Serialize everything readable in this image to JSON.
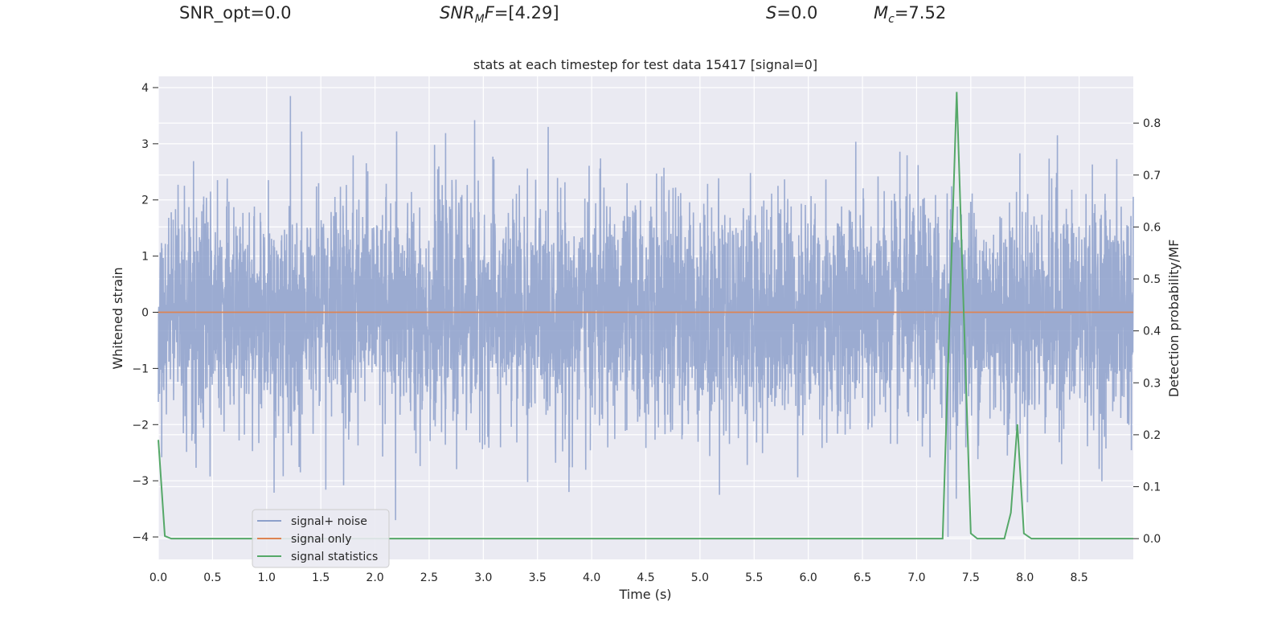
{
  "header": {
    "snr_opt": "SNR_opt=0.0",
    "snr_mf_base": "SNR",
    "snr_mf_sub": "M",
    "snr_mf_tail": "F",
    "snr_mf_value": "=[4.29]",
    "s_label": "S",
    "s_value": "=0.0",
    "mc_label": "M",
    "mc_sub": "c",
    "mc_value": "=7.52"
  },
  "chart_data": {
    "type": "line",
    "title": "stats at each timestep for test data 15417 [signal=0]",
    "xlabel": "Time (s)",
    "ylabel": "Whitened strain",
    "y2label": "Detection probability/MF",
    "xlim": [
      0.0,
      9.0
    ],
    "ylim": [
      -4.4,
      4.2
    ],
    "y2lim": [
      -0.04,
      0.89
    ],
    "xticks": [
      "0.0",
      "0.5",
      "1.0",
      "1.5",
      "2.0",
      "2.5",
      "3.0",
      "3.5",
      "4.0",
      "4.5",
      "5.0",
      "5.5",
      "6.0",
      "6.5",
      "7.0",
      "7.5",
      "8.0",
      "8.5"
    ],
    "yticks": [
      "4",
      "3",
      "2",
      "1",
      "0",
      "−1",
      "−2",
      "−3",
      "−4"
    ],
    "y2ticks": [
      "0.8",
      "0.7",
      "0.6",
      "0.5",
      "0.4",
      "0.3",
      "0.2",
      "0.1",
      "0.0"
    ],
    "grid": true,
    "legend_position": "lower-left",
    "colors": {
      "noise": "#8da0cb",
      "signal_only": "#dd8452",
      "statistics": "#55a868",
      "background": "#eaeaf2",
      "grid": "#ffffff"
    },
    "series": [
      {
        "name": "signal+ noise",
        "axis": "left",
        "description_values": {
          "sigma": 1.0,
          "notable_spikes": [
            {
              "x": 1.22,
              "y": 3.85
            },
            {
              "x": 2.92,
              "y": 3.42
            },
            {
              "x": 2.2,
              "y": 3.22
            },
            {
              "x": 8.3,
              "y": 3.15
            },
            {
              "x": 2.19,
              "y": -3.7
            },
            {
              "x": 1.71,
              "y": -3.08
            },
            {
              "x": 5.18,
              "y": -3.25
            },
            {
              "x": 3.79,
              "y": -3.2
            },
            {
              "x": 7.29,
              "y": -4.0
            }
          ]
        }
      },
      {
        "name": "signal only",
        "axis": "left",
        "x": [
          0.0,
          9.0
        ],
        "values": [
          0.0,
          0.0
        ]
      },
      {
        "name": "signal statistics",
        "axis": "right",
        "x": [
          0.0,
          0.06,
          0.12,
          0.5,
          1.0,
          2.0,
          3.0,
          4.0,
          5.0,
          6.0,
          7.0,
          7.24,
          7.37,
          7.5,
          7.56,
          7.81,
          7.87,
          7.93,
          7.99,
          8.06,
          8.5,
          9.0
        ],
        "values": [
          0.19,
          0.005,
          0.0,
          0.0,
          0.0,
          0.0,
          0.0,
          0.0,
          0.0,
          0.0,
          0.0,
          0.0,
          0.86,
          0.01,
          0.0,
          0.0,
          0.05,
          0.22,
          0.01,
          0.0,
          0.0,
          0.0
        ]
      }
    ]
  }
}
